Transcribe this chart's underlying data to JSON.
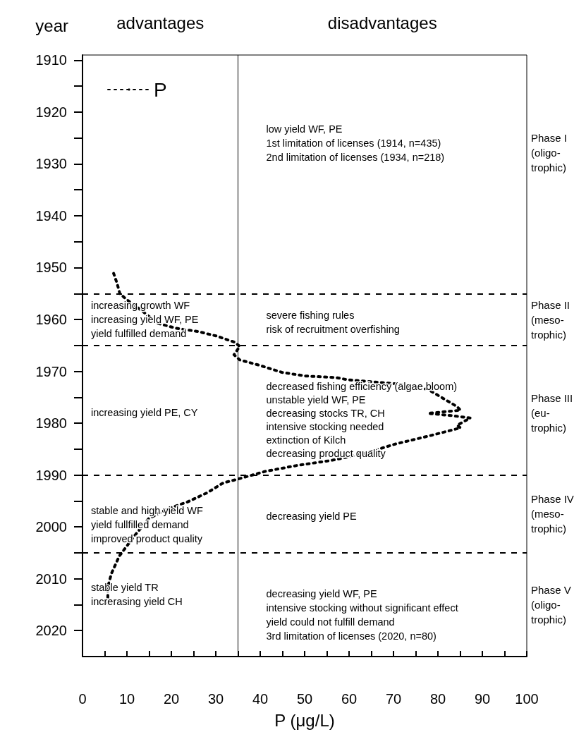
{
  "chart_data": {
    "type": "line",
    "xlabel": "P (μg/L)",
    "ylabel": "year",
    "xlim": [
      0,
      100
    ],
    "xticks": [
      0,
      {
        "value": 5,
        "label": null
      },
      10,
      {
        "value": 15,
        "label": null
      },
      20,
      {
        "value": 25,
        "label": null
      },
      30,
      {
        "value": 35,
        "label": null
      },
      40,
      {
        "value": 45,
        "label": null
      },
      50,
      {
        "value": 55,
        "label": null
      },
      60,
      {
        "value": 65,
        "label": null
      },
      70,
      {
        "value": 75,
        "label": null
      },
      80,
      {
        "value": 85,
        "label": null
      },
      90,
      {
        "value": 95,
        "label": null
      },
      100
    ],
    "ylim": [
      2025,
      1909
    ],
    "yticks": [
      1910,
      {
        "value": 1915,
        "label": null
      },
      1920,
      {
        "value": 1925,
        "label": null
      },
      1930,
      {
        "value": 1935,
        "label": null
      },
      1940,
      {
        "value": 1945,
        "label": null
      },
      1950,
      {
        "value": 1955,
        "label": null
      },
      1960,
      {
        "value": 1965,
        "label": null
      },
      1970,
      {
        "value": 1975,
        "label": null
      },
      1980,
      {
        "value": 1985,
        "label": null
      },
      1990,
      {
        "value": 1995,
        "label": null
      },
      2000,
      {
        "value": 2005,
        "label": null
      },
      2010,
      {
        "value": 2015,
        "label": null
      },
      2020
    ],
    "grid": false,
    "legend": "top left",
    "marker": "none",
    "line_style": "dotted",
    "series": [
      {
        "name": "P",
        "color": "#000000",
        "x": [
          7.0,
          7.8,
          8.4,
          10.0,
          13.5,
          16.8,
          21.1,
          25.9,
          30.2,
          34.3,
          35.4,
          34.1,
          35.4,
          39.7,
          44.9,
          50.2,
          57.1,
          59.5,
          70.5,
          77.8,
          84.3,
          85.1,
          77.8,
          83.7,
          87.3,
          84.3,
          85.1,
          77.8,
          70.5,
          63.2,
          55.9,
          48.6,
          41.1,
          34.9,
          31.7,
          28.1,
          23.6,
          19.2,
          14.9,
          11.9,
          8.3,
          6.5,
          5.7,
          5.7
        ],
        "values": [
          1951.1,
          1953.1,
          1955.0,
          1956.2,
          1958.4,
          1960.7,
          1961.7,
          1962.3,
          1963.2,
          1964.4,
          1965.2,
          1966.8,
          1967.8,
          1968.8,
          1970.2,
          1970.9,
          1971.2,
          1971.6,
          1972.4,
          1973.5,
          1976.8,
          1977.5,
          1978.1,
          1978.6,
          1979.0,
          1980.4,
          1980.9,
          1982.5,
          1984.0,
          1985.9,
          1987.2,
          1988.1,
          1989.3,
          1990.8,
          1991.5,
          1993.4,
          1995.2,
          1996.5,
          1998.4,
          2001.5,
          2005.6,
          2009.0,
          2011.6,
          2014.7
        ]
      }
    ],
    "ref_lines": [
      {
        "axis": "x",
        "value": 35,
        "label": null,
        "color": "#000000",
        "line_style": "solid"
      },
      {
        "axis": "y",
        "value": 1955,
        "label": null,
        "color": "#000000",
        "line_style": "dashed"
      },
      {
        "axis": "y",
        "value": 1965,
        "label": null,
        "color": "#000000",
        "line_style": "dashed"
      },
      {
        "axis": "y",
        "value": 1990,
        "label": null,
        "color": "#000000",
        "line_style": "dashed"
      },
      {
        "axis": "y",
        "value": 2005,
        "label": null,
        "color": "#000000",
        "line_style": "dashed"
      }
    ],
    "annotations": [
      "advantages",
      "disadvantages",
      "low yield WF, PE\n1st limitation of licenses (1914, n=435)\n2nd limitation of licenses (1934, n=218)",
      "Phase I\n(oligo-\ntrophic)",
      "increasing growth WF\nincreasing yield WF, PE\nyield fulfilled demand",
      "severe fishing rules\nrisk of recruitment overfishing",
      "Phase II\n(meso-\ntrophic)",
      "increasing yield PE, CY",
      "decreased fishing efficiency (algae bloom)\nunstable yield WF, PE\ndecreasing stocks TR, CH\nintensive stocking needed\nextinction of Kilch\ndecreasing product quality",
      "Phase III\n(eu-\ntrophic)",
      "stable and high yield WF\nyield fullfilled demand\nimproved product quality",
      "decreasing yield PE",
      "Phase IV\n(meso-\ntrophic)",
      "stable yield TR\nincrerasing yield CH",
      "decreasing yield WF, PE\nintensive stocking without significant effect\nyield could not fulfill demand\n3rd limitation of licenses (2020, n=80)",
      "Phase V\n(oligo-\ntrophic)"
    ]
  }
}
